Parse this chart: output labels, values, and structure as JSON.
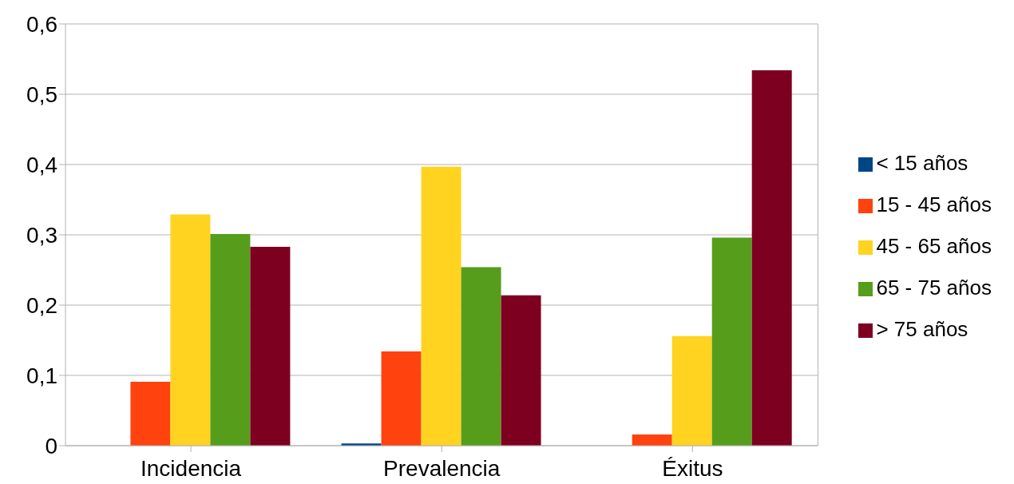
{
  "chart_data": {
    "type": "bar",
    "categories": [
      "Incidencia",
      "Prevalencia",
      "Éxitus"
    ],
    "series": [
      {
        "name": "< 15 años",
        "color": "#004586",
        "values": [
          0,
          0.003,
          0
        ]
      },
      {
        "name": "15 - 45 años",
        "color": "#ff420e",
        "values": [
          0.091,
          0.134,
          0.016
        ]
      },
      {
        "name": "45 - 65 años",
        "color": "#ffd320",
        "values": [
          0.329,
          0.397,
          0.156
        ]
      },
      {
        "name": "65 - 75 años",
        "color": "#579d1c",
        "values": [
          0.301,
          0.254,
          0.296
        ]
      },
      {
        "name": "> 75 años",
        "color": "#7e0021",
        "values": [
          0.283,
          0.214,
          0.534
        ]
      }
    ],
    "ylim": [
      0,
      0.6
    ],
    "yticks": [
      {
        "value": 0,
        "label": "0"
      },
      {
        "value": 0.1,
        "label": "0,1"
      },
      {
        "value": 0.2,
        "label": "0,2"
      },
      {
        "value": 0.3,
        "label": "0,3"
      },
      {
        "value": 0.4,
        "label": "0,4"
      },
      {
        "value": 0.5,
        "label": "0,5"
      },
      {
        "value": 0.6,
        "label": "0,6"
      }
    ],
    "grid": "y",
    "legend": "right"
  }
}
